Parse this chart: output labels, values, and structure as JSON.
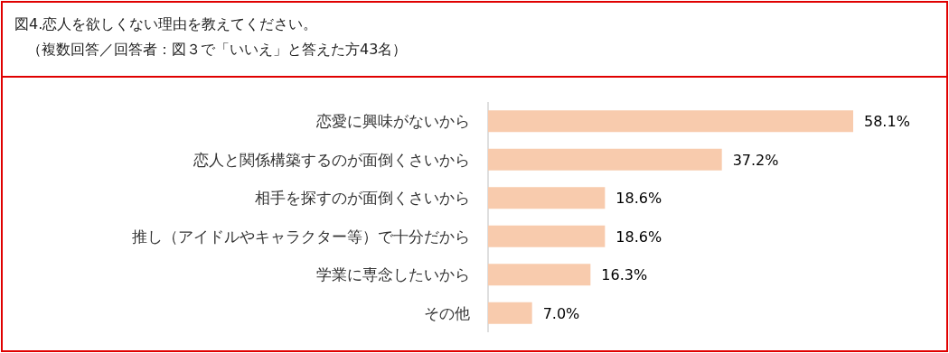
{
  "chart_data": {
    "type": "bar",
    "orientation": "horizontal",
    "title": "図4.恋人を欲しくない理由を教えてください。",
    "subtitle": "（複数回答／回答者：図３で「いいえ」と答えた方43名）",
    "categories": [
      "恋愛に興味がないから",
      "恋人と関係構築するのが面倒くさいから",
      "相手を探すのが面倒くさいから",
      "推し（アイドルやキャラクター等）で十分だから",
      "学業に専念したいから",
      "その他"
    ],
    "values": [
      58.1,
      37.2,
      18.6,
      18.6,
      16.3,
      7.0
    ],
    "value_labels": [
      "58.1%",
      "37.2%",
      "18.6%",
      "18.6%",
      "16.3%",
      "7.0%"
    ],
    "color": "#f8cbad"
  }
}
